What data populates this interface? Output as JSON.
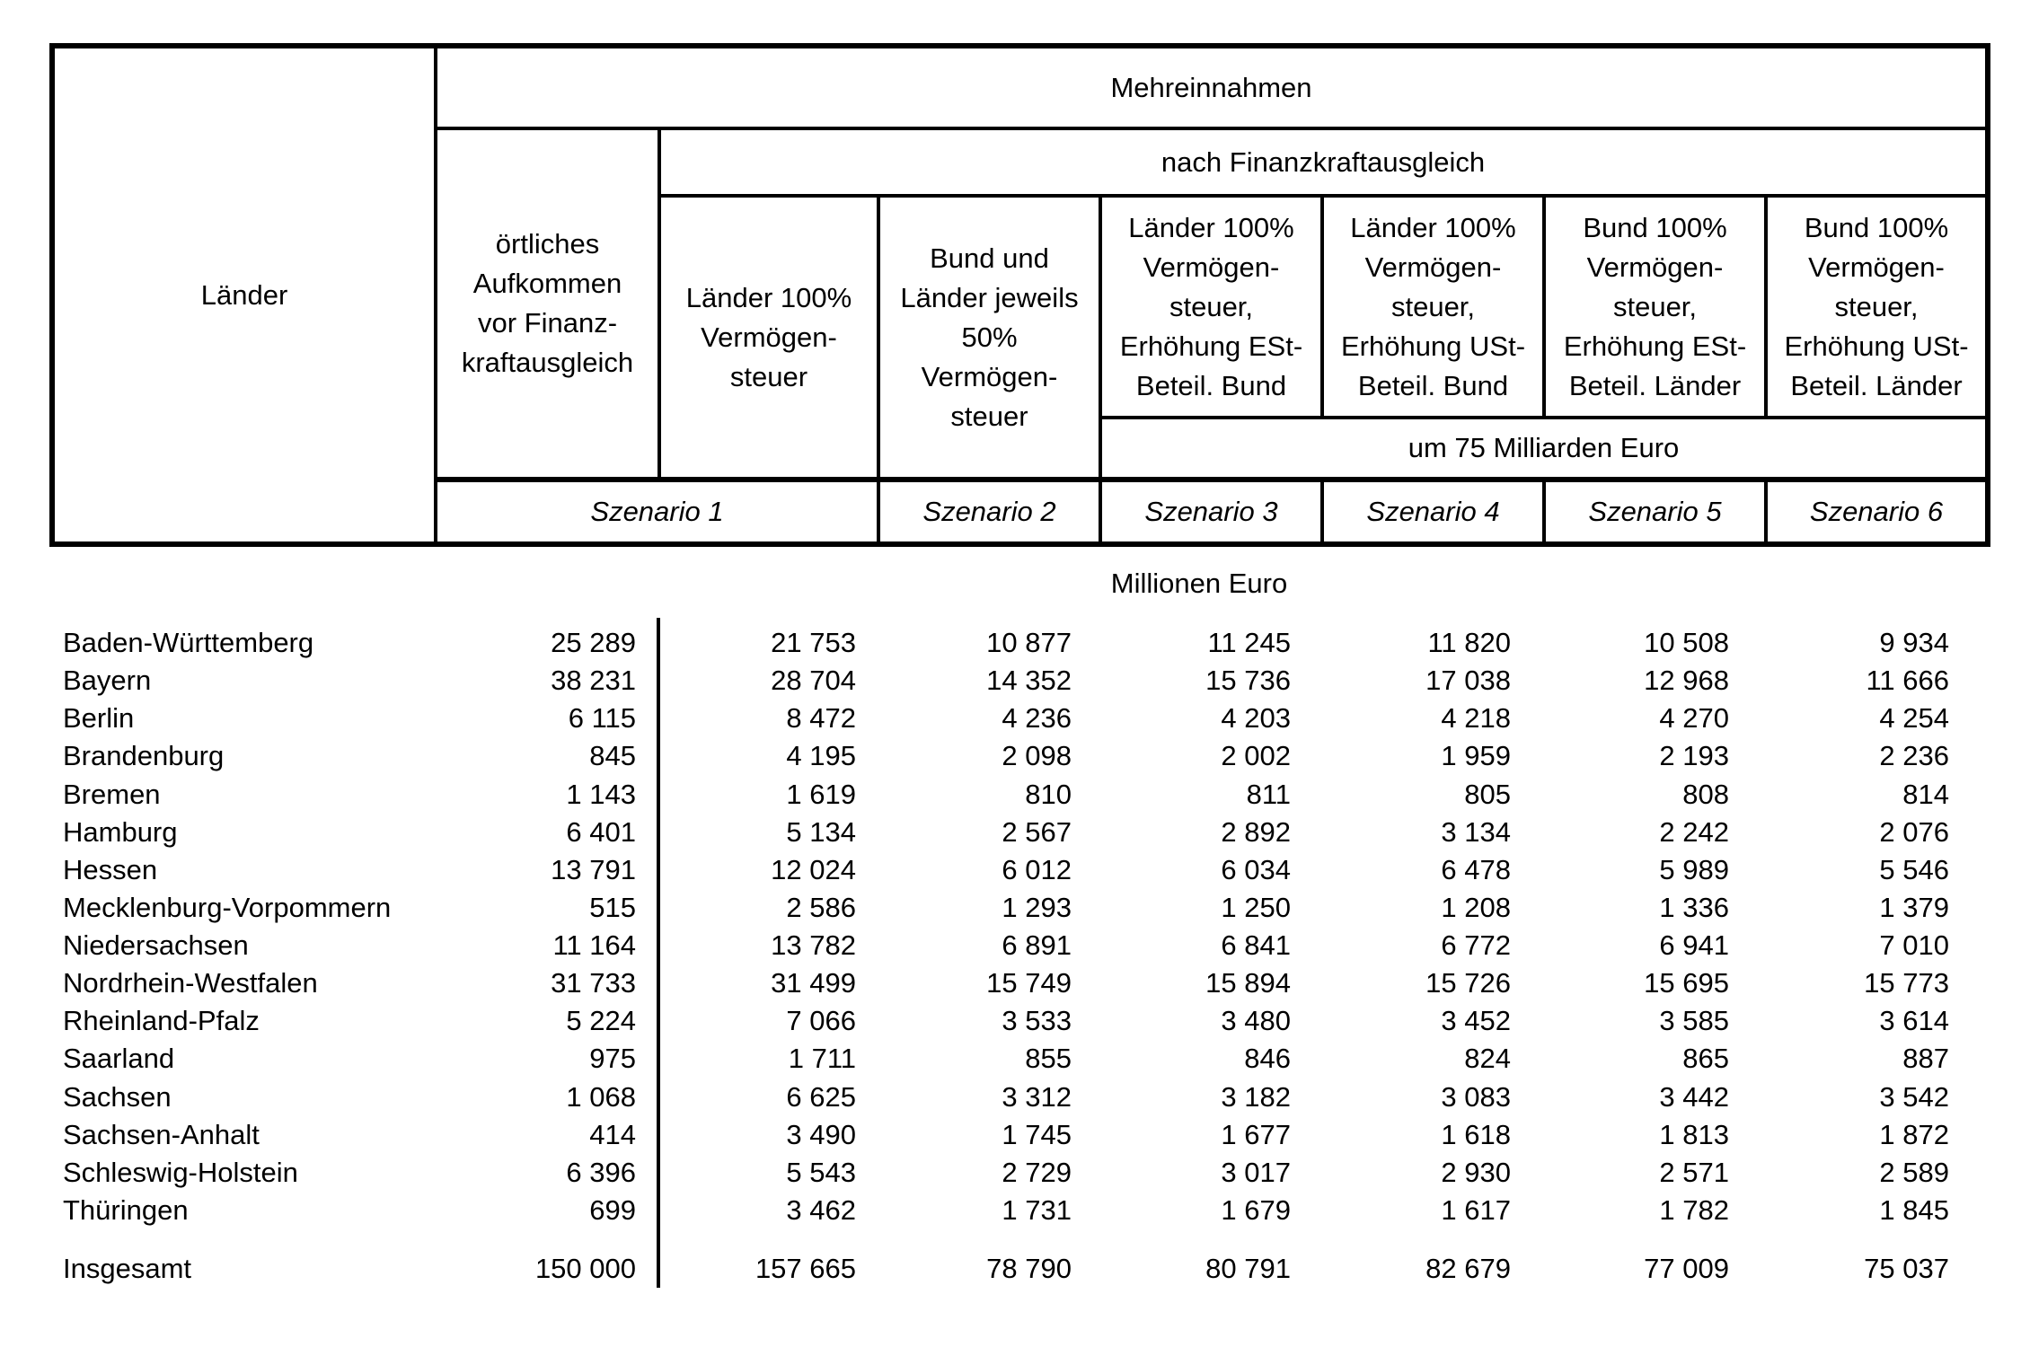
{
  "document": {
    "caption": "Millionen Euro",
    "header": {
      "laender": "Länder",
      "mehreinnahmen": "Mehreinnahmen",
      "nach_finanzkraftausgleich": "nach Finanzkraftausgleich",
      "oertliches_aufkommen": "örtliches\nAufkommen\nvor Finanz-\nkraftausgleich",
      "um_75_milliarden": "um 75 Milliarden Euro",
      "scenario_columns": [
        "Länder 100%\nVermögen-\nsteuer",
        "Bund und\nLänder jeweils\n50%\nVermögen-\nsteuer",
        "Länder 100%\nVermögen-\nsteuer,\nErhöhung ESt-\nBeteil. Bund",
        "Länder 100%\nVermögen-\nsteuer,\nErhöhung USt-\nBeteil. Bund",
        "Bund 100%\nVermögen-\nsteuer,\nErhöhung ESt-\nBeteil. Länder",
        "Bund 100%\nVermögen-\nsteuer,\nErhöhung USt-\nBeteil. Länder"
      ],
      "szenario_labels": [
        "Szenario 1",
        "Szenario 2",
        "Szenario 3",
        "Szenario 4",
        "Szenario 5",
        "Szenario 6"
      ]
    },
    "rows": [
      {
        "land": "Baden-Württemberg",
        "values": [
          "25 289",
          "21 753",
          "10 877",
          "11 245",
          "11 820",
          "10 508",
          "9 934"
        ]
      },
      {
        "land": "Bayern",
        "values": [
          "38 231",
          "28 704",
          "14 352",
          "15 736",
          "17 038",
          "12 968",
          "11 666"
        ]
      },
      {
        "land": "Berlin",
        "values": [
          "6 115",
          "8 472",
          "4 236",
          "4 203",
          "4 218",
          "4 270",
          "4 254"
        ]
      },
      {
        "land": "Brandenburg",
        "values": [
          "845",
          "4 195",
          "2 098",
          "2 002",
          "1 959",
          "2 193",
          "2 236"
        ]
      },
      {
        "land": "Bremen",
        "values": [
          "1 143",
          "1 619",
          "810",
          "811",
          "805",
          "808",
          "814"
        ]
      },
      {
        "land": "Hamburg",
        "values": [
          "6 401",
          "5 134",
          "2 567",
          "2 892",
          "3 134",
          "2 242",
          "2 076"
        ]
      },
      {
        "land": "Hessen",
        "values": [
          "13 791",
          "12 024",
          "6 012",
          "6 034",
          "6 478",
          "5 989",
          "5 546"
        ]
      },
      {
        "land": "Mecklenburg-Vorpommern",
        "values": [
          "515",
          "2 586",
          "1 293",
          "1 250",
          "1 208",
          "1 336",
          "1 379"
        ]
      },
      {
        "land": "Niedersachsen",
        "values": [
          "11 164",
          "13 782",
          "6 891",
          "6 841",
          "6 772",
          "6 941",
          "7 010"
        ]
      },
      {
        "land": "Nordrhein-Westfalen",
        "values": [
          "31 733",
          "31 499",
          "15 749",
          "15 894",
          "15 726",
          "15 695",
          "15 773"
        ]
      },
      {
        "land": "Rheinland-Pfalz",
        "values": [
          "5 224",
          "7 066",
          "3 533",
          "3 480",
          "3 452",
          "3 585",
          "3 614"
        ]
      },
      {
        "land": "Saarland",
        "values": [
          "975",
          "1 711",
          "855",
          "846",
          "824",
          "865",
          "887"
        ]
      },
      {
        "land": "Sachsen",
        "values": [
          "1 068",
          "6 625",
          "3 312",
          "3 182",
          "3 083",
          "3 442",
          "3 542"
        ]
      },
      {
        "land": "Sachsen-Anhalt",
        "values": [
          "414",
          "3 490",
          "1 745",
          "1 677",
          "1 618",
          "1 813",
          "1 872"
        ]
      },
      {
        "land": "Schleswig-Holstein",
        "values": [
          "6 396",
          "5 543",
          "2 729",
          "3 017",
          "2 930",
          "2 571",
          "2 589"
        ]
      },
      {
        "land": "Thüringen",
        "values": [
          "699",
          "3 462",
          "1 731",
          "1 679",
          "1 617",
          "1 782",
          "1 845"
        ]
      }
    ],
    "total": {
      "land": "Insgesamt",
      "values": [
        "150 000",
        "157 665",
        "78 790",
        "80 791",
        "82 679",
        "77 009",
        "75 037"
      ]
    }
  }
}
